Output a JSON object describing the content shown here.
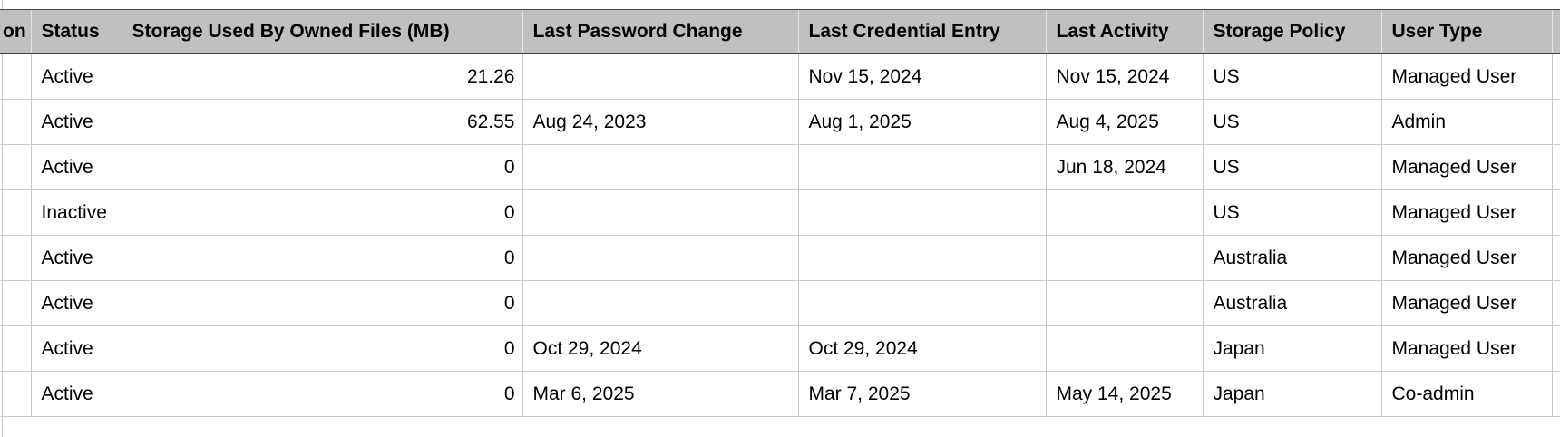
{
  "colors": {
    "header_bg": "#c0c0c0",
    "header_rule": "#424242",
    "grid_line": "#c9c9c9",
    "text": "#000000"
  },
  "table": {
    "columns": [
      {
        "id": "col-truncated",
        "label": "on",
        "align": "left"
      },
      {
        "id": "status",
        "label": "Status",
        "align": "left"
      },
      {
        "id": "storage-used",
        "label": "Storage Used By Owned Files (MB)",
        "align": "right"
      },
      {
        "id": "last-password-change",
        "label": "Last Password Change",
        "align": "left"
      },
      {
        "id": "last-credential-entry",
        "label": "Last Credential Entry",
        "align": "left"
      },
      {
        "id": "last-activity",
        "label": "Last Activity",
        "align": "left"
      },
      {
        "id": "storage-policy",
        "label": "Storage Policy",
        "align": "left"
      },
      {
        "id": "user-type",
        "label": "User Type",
        "align": "left"
      },
      {
        "id": "next-column-sliver",
        "label": "",
        "align": "left"
      }
    ],
    "rows": [
      [
        "",
        "Active",
        "21.26",
        "",
        "Nov 15, 2024",
        "Nov 15, 2024",
        "US",
        "Managed User",
        ""
      ],
      [
        "",
        "Active",
        "62.55",
        "Aug 24, 2023",
        "Aug 1, 2025",
        "Aug 4, 2025",
        "US",
        "Admin",
        ""
      ],
      [
        "",
        "Active",
        "0",
        "",
        "",
        "Jun 18, 2024",
        "US",
        "Managed User",
        ""
      ],
      [
        "",
        "Inactive",
        "0",
        "",
        "",
        "",
        "US",
        "Managed User",
        ""
      ],
      [
        "",
        "Active",
        "0",
        "",
        "",
        "",
        "Australia",
        "Managed User",
        ""
      ],
      [
        "",
        "Active",
        "0",
        "",
        "",
        "",
        "Australia",
        "Managed User",
        ""
      ],
      [
        "",
        "Active",
        "0",
        "Oct 29, 2024",
        "Oct 29, 2024",
        "",
        "Japan",
        "Managed User",
        ""
      ],
      [
        "",
        "Active",
        "0",
        "Mar 6, 2025",
        "Mar 7, 2025",
        "May 14, 2025",
        "Japan",
        "Co-admin",
        ""
      ]
    ]
  }
}
